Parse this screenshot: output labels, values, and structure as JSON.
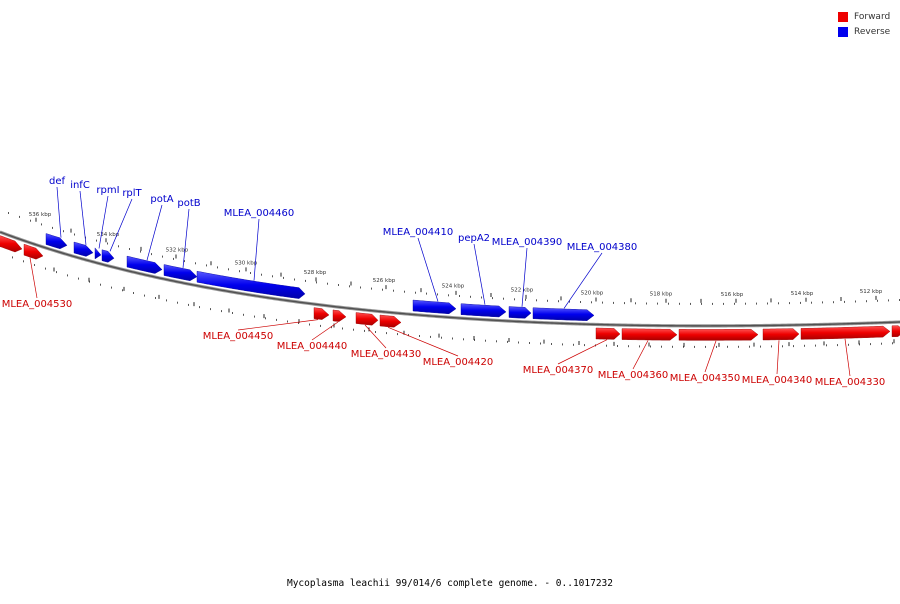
{
  "legend": [
    {
      "label": "Forward",
      "color": "#ee0000"
    },
    {
      "label": "Reverse",
      "color": "#0000ee"
    }
  ],
  "caption": "Mycoplasma leachii 99/014/6 complete genome. - 0..1017232",
  "scale": [
    {
      "label": "536 kbp"
    },
    {
      "label": "534 kbp"
    },
    {
      "label": "532 kbp"
    },
    {
      "label": "530 kbp"
    },
    {
      "label": "528 kbp"
    },
    {
      "label": "526 kbp"
    },
    {
      "label": "524 kbp"
    },
    {
      "label": "522 kbp"
    },
    {
      "label": "520 kbp"
    },
    {
      "label": "518 kbp"
    },
    {
      "label": "516 kbp"
    },
    {
      "label": "514 kbp"
    },
    {
      "label": "512 kbp"
    }
  ],
  "reverse_genes": [
    {
      "label": "def"
    },
    {
      "label": "infC"
    },
    {
      "label": "rpmI"
    },
    {
      "label": "rplT"
    },
    {
      "label": "potA"
    },
    {
      "label": "potB"
    },
    {
      "label": "MLEA_004460"
    },
    {
      "label": "MLEA_004410"
    },
    {
      "label": "pepA2"
    },
    {
      "label": "MLEA_004390"
    },
    {
      "label": "MLEA_004380"
    }
  ],
  "forward_genes": [
    {
      "label": "MLEA_004530"
    },
    {
      "label": "MLEA_004450"
    },
    {
      "label": "MLEA_004440"
    },
    {
      "label": "MLEA_004430"
    },
    {
      "label": "MLEA_004420"
    },
    {
      "label": "MLEA_004370"
    },
    {
      "label": "MLEA_004360"
    },
    {
      "label": "MLEA_004350"
    },
    {
      "label": "MLEA_004340"
    },
    {
      "label": "MLEA_004330"
    }
  ]
}
